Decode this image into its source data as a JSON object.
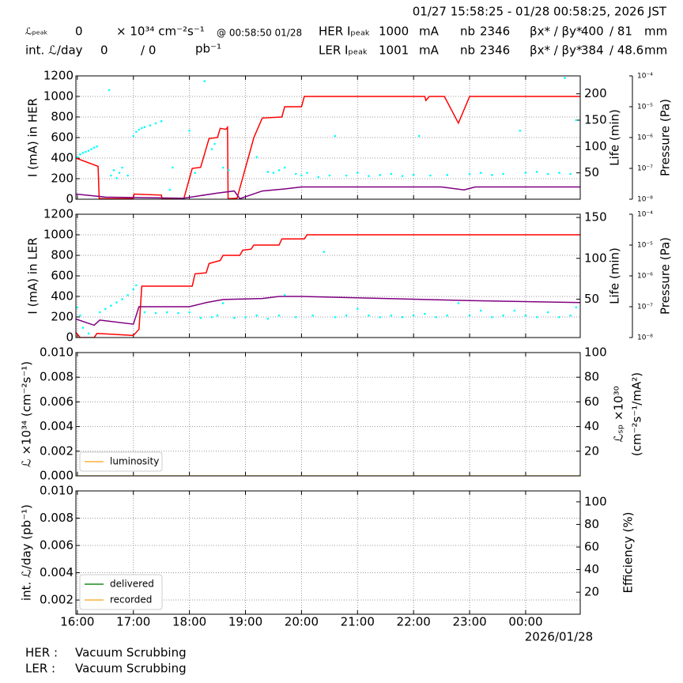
{
  "header": {
    "title": "01/27 15:58:25 - 01/28 00:58:25, 2026 JST",
    "row1": [
      "ℒₚₑₐₖ",
      0,
      "× 10³⁴ cm⁻²s⁻¹",
      "@ 00:58:50 01/28",
      "HER Iₚₑₐₖ",
      1000,
      "mA",
      "nb",
      2346,
      "βx* / βy*",
      400,
      "/ 81",
      "mm"
    ],
    "row2": [
      "int. ℒ/day",
      0,
      "/ 0",
      "pb⁻¹",
      "LER Iₚₑₐₖ",
      1001,
      "mA",
      "nb",
      2346,
      "βx* / βy*",
      384,
      "/ 48.6",
      "mm"
    ]
  },
  "chart_data": [
    {
      "type": "line",
      "ylabel": "I (mA) in HER",
      "y2label": "Life (min)",
      "y3label": "Pressure (Pa)",
      "grid": true,
      "ylim": [
        0,
        1200
      ],
      "yticks": [
        0,
        200,
        400,
        600,
        800,
        1000,
        1200
      ],
      "y2lim": [
        0,
        234
      ],
      "y2ticks": [
        50,
        100,
        150,
        200
      ],
      "y3lim": [
        1e-08,
        0.0001
      ],
      "y3log": true,
      "y3ticks": [
        {
          "value": 1e-08,
          "label": "10⁻⁸"
        },
        {
          "value": 1e-07,
          "label": "10⁻⁷"
        },
        {
          "value": 1e-06,
          "label": "10⁻⁶"
        },
        {
          "value": 1e-05,
          "label": "10⁻⁵"
        },
        {
          "value": 0.0001,
          "label": "10⁻⁴"
        }
      ],
      "series": [
        {
          "color": "#ff0000",
          "mode": "lines",
          "axis": "y",
          "x": [
            15.974,
            16.37,
            16.39,
            17.0,
            17.01,
            17.5,
            17.51,
            17.9,
            18.05,
            18.2,
            18.35,
            18.5,
            18.55,
            18.65,
            18.68,
            18.69,
            18.85,
            19.15,
            19.3,
            19.65,
            19.7,
            20.0,
            20.05,
            22.2,
            22.22,
            22.28,
            22.55,
            22.8,
            23.0,
            24.974
          ],
          "values": [
            400,
            320,
            5,
            5,
            50,
            40,
            5,
            5,
            300,
            310,
            590,
            600,
            690,
            680,
            700,
            5,
            10,
            600,
            790,
            800,
            900,
            900,
            1000,
            1000,
            960,
            1000,
            1000,
            740,
            1000,
            1000
          ]
        },
        {
          "color": "#800080",
          "mode": "lines",
          "axis": "y3",
          "x": [
            15.974,
            16.5,
            17.9,
            18.5,
            18.8,
            18.9,
            19.3,
            19.7,
            20.0,
            22.5,
            22.9,
            23.1,
            24.974
          ],
          "values": [
            1.47e-08,
            1.17e-08,
            1.08e-08,
            1.58e-08,
            1.85e-08,
            1.04e-08,
            1.85e-08,
            2.15e-08,
            2.5e-08,
            2.5e-08,
            2e-08,
            2.5e-08,
            2.5e-08
          ]
        },
        {
          "color": "#00ffff",
          "mode": "markers",
          "axis": "y2",
          "x": [
            16.0,
            16.05,
            16.1,
            16.15,
            16.2,
            16.25,
            16.3,
            16.35,
            16.57,
            16.6,
            16.65,
            16.7,
            16.75,
            16.8,
            16.9,
            17.0,
            17.05,
            17.1,
            17.15,
            17.2,
            17.3,
            17.4,
            17.5,
            17.65,
            17.7,
            18.0,
            18.1,
            18.4,
            18.45,
            18.6,
            18.7,
            19.2,
            19.4,
            19.5,
            19.6,
            19.7,
            19.9,
            20.0,
            20.1,
            20.3,
            20.5,
            20.6,
            20.8,
            21.0,
            21.2,
            21.4,
            21.6,
            21.8,
            22.0,
            22.1,
            22.3,
            22.6,
            23.0,
            23.2,
            23.4,
            23.6,
            23.9,
            24.0,
            24.2,
            24.4,
            24.6,
            24.7,
            24.8,
            24.9,
            18.27
          ],
          "values": [
            80,
            85,
            88,
            90,
            92,
            95,
            98,
            100,
            207,
            45,
            55,
            40,
            50,
            60,
            45,
            120,
            128,
            132,
            135,
            137,
            140,
            144,
            148,
            18,
            60,
            130,
            50,
            95,
            105,
            60,
            55,
            80,
            52,
            50,
            55,
            60,
            48,
            45,
            50,
            42,
            45,
            120,
            45,
            50,
            44,
            46,
            48,
            44,
            46,
            120,
            45,
            46,
            48,
            50,
            46,
            48,
            130,
            50,
            52,
            48,
            50,
            230,
            48,
            150,
            224
          ]
        }
      ]
    },
    {
      "type": "line",
      "ylabel": "I (mA) in LER",
      "y2label": "Life (min)",
      "y3label": "Pressure (Pa)",
      "grid": true,
      "ylim": [
        0,
        1200
      ],
      "yticks": [
        0,
        200,
        400,
        600,
        800,
        1000,
        1200
      ],
      "y2lim": [
        3,
        154
      ],
      "y2ticks": [
        50,
        100,
        150
      ],
      "y3lim": [
        1e-08,
        0.0001
      ],
      "y3log": true,
      "y3ticks": [
        {
          "value": 1e-08,
          "label": "10⁻⁸"
        },
        {
          "value": 1e-07,
          "label": "10⁻⁷"
        },
        {
          "value": 1e-06,
          "label": "10⁻⁶"
        },
        {
          "value": 1e-05,
          "label": "10⁻⁵"
        },
        {
          "value": 0.0001,
          "label": "10⁻⁴"
        }
      ],
      "series": [
        {
          "color": "#ff0000",
          "mode": "lines",
          "axis": "y",
          "x": [
            15.974,
            16.05,
            16.3,
            16.35,
            17.0,
            17.1,
            17.15,
            18.05,
            18.1,
            18.3,
            18.35,
            18.55,
            18.6,
            18.9,
            18.95,
            19.1,
            19.15,
            19.6,
            19.65,
            20.05,
            20.1,
            24.974
          ],
          "values": [
            50,
            0,
            0,
            40,
            20,
            80,
            500,
            500,
            620,
            630,
            720,
            750,
            800,
            800,
            850,
            860,
            900,
            900,
            960,
            960,
            1000,
            1000
          ]
        },
        {
          "color": "#800080",
          "mode": "lines",
          "axis": "y3",
          "x": [
            15.974,
            16.3,
            16.4,
            17.0,
            17.1,
            18.0,
            18.3,
            18.6,
            19.3,
            19.6,
            20.0,
            21.5,
            23.0,
            24.974
          ],
          "values": [
            3.98e-08,
            2.51e-08,
            3.69e-08,
            2.71e-08,
            1e-07,
            1e-07,
            1.36e-07,
            1.71e-07,
            1.84e-07,
            2.15e-07,
            2.15e-07,
            1.84e-07,
            1.58e-07,
            1.36e-07
          ]
        },
        {
          "color": "#00ffff",
          "mode": "markers",
          "axis": "y2",
          "x": [
            16.0,
            16.05,
            16.1,
            16.2,
            16.4,
            16.5,
            16.6,
            16.7,
            16.8,
            16.9,
            17.0,
            17.05,
            17.2,
            17.4,
            17.6,
            17.8,
            18.0,
            18.2,
            18.4,
            18.5,
            18.6,
            18.8,
            19.0,
            19.2,
            19.4,
            19.6,
            19.7,
            19.9,
            20.2,
            20.4,
            20.6,
            20.8,
            21.0,
            21.2,
            21.4,
            21.6,
            21.8,
            22.0,
            22.2,
            22.4,
            22.6,
            22.8,
            23.0,
            23.2,
            23.4,
            23.6,
            23.8,
            24.0,
            24.2,
            24.4,
            24.6,
            24.8,
            24.9
          ],
          "values": [
            40,
            30,
            15,
            8,
            34,
            38,
            42,
            46,
            50,
            55,
            62,
            67,
            34,
            33,
            34,
            33,
            34,
            27,
            28,
            30,
            45,
            27,
            28,
            30,
            26,
            30,
            55,
            28,
            30,
            108,
            28,
            30,
            38,
            30,
            28,
            30,
            28,
            30,
            32,
            28,
            30,
            45,
            30,
            36,
            28,
            30,
            36,
            30,
            28,
            34,
            28,
            30,
            40
          ]
        }
      ]
    },
    {
      "type": "line",
      "ylabel": "ℒ ×10³⁴ (cm⁻²s⁻¹)",
      "y2label": [
        "ℒₛₚ ×10³⁰",
        "(cm⁻²s⁻¹/mA²)"
      ],
      "grid": true,
      "legend": "lower left",
      "ylim": [
        0,
        0.01
      ],
      "yticks": [
        {
          "value": 0,
          "label": "0.000"
        },
        0.002,
        0.004,
        0.006,
        0.008,
        {
          "value": 0.01,
          "label": "0.010"
        }
      ],
      "y2lim": [
        0,
        100
      ],
      "y2ticks": [
        20,
        40,
        60,
        80,
        100
      ],
      "series": [
        {
          "name": "luminosity",
          "color": "#fbb13c",
          "mode": "lines",
          "axis": "y",
          "x": [
            15.974,
            24.974
          ],
          "values": [
            0,
            0
          ]
        }
      ]
    },
    {
      "type": "line",
      "ylabel": "int. ℒ/day (pb⁻¹)",
      "y2label": "Efficiency (%)",
      "grid": true,
      "legend": "lower left",
      "ylim": [
        0.00096,
        0.01
      ],
      "yticks": [
        0.002,
        0.004,
        0.006,
        0.008,
        {
          "value": 0.01,
          "label": "0.010"
        }
      ],
      "y2lim": [
        0.5,
        109.7
      ],
      "y2ticks": [
        20,
        40,
        60,
        80,
        100
      ],
      "xlim": [
        15.974,
        24.974
      ],
      "xticks": [
        {
          "value": 16,
          "label": "16:00"
        },
        {
          "value": 17,
          "label": "17:00"
        },
        {
          "value": 18,
          "label": "18:00"
        },
        {
          "value": 19,
          "label": "19:00"
        },
        {
          "value": 20,
          "label": "20:00"
        },
        {
          "value": 21,
          "label": "21:00"
        },
        {
          "value": 22,
          "label": "22:00"
        },
        {
          "value": 23,
          "label": "23:00"
        },
        {
          "value": 24,
          "label": "00:00"
        }
      ],
      "xlabel": "2026/01/28",
      "series": [
        {
          "name": "delivered",
          "color": "#1a8a1a"
        },
        {
          "name": "recorded",
          "color": "#fbb13c"
        }
      ]
    }
  ],
  "footer": {
    "rows": [
      [
        "HER :",
        "Vacuum Scrubbing"
      ],
      [
        "LER :",
        "Vacuum Scrubbing"
      ]
    ]
  }
}
